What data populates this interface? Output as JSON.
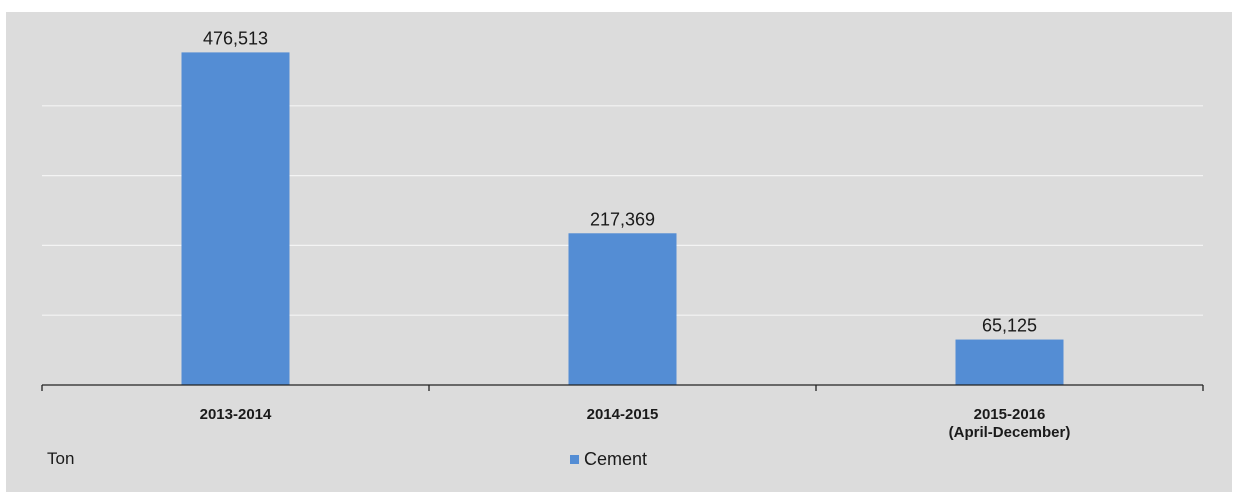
{
  "chart_data": {
    "type": "bar",
    "categories": [
      [
        "2013-2014"
      ],
      [
        "2014-2015"
      ],
      [
        "2015-2016",
        "(April-December)"
      ]
    ],
    "series": [
      {
        "name": "Cement",
        "values": [
          476513,
          217369,
          65125
        ],
        "value_labels": [
          "476,513",
          "217,369",
          "65,125"
        ],
        "color": "#548dd4"
      }
    ],
    "ylim": [
      0,
      500000
    ],
    "unit_label": "Ton",
    "grid": true,
    "legend_position": "bottom"
  }
}
